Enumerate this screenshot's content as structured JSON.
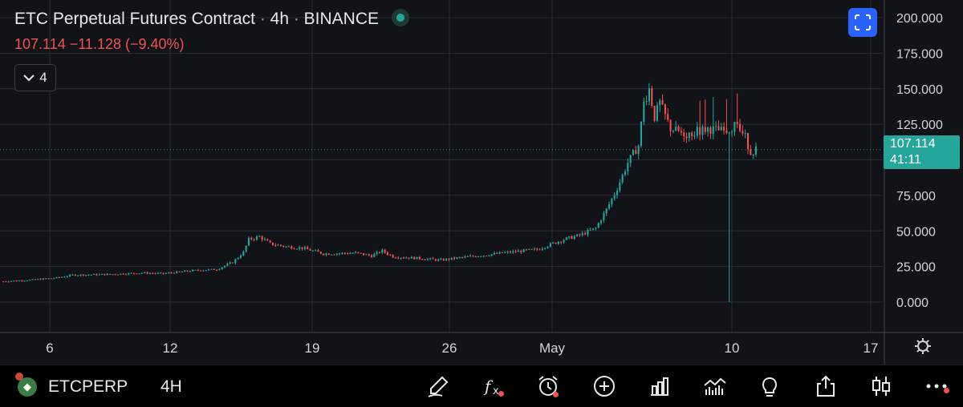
{
  "header": {
    "title": "ETC Perpetual Futures Contract",
    "interval": "4h",
    "exchange": "BINANCE",
    "last": "107.114",
    "change": "−11.128",
    "change_pct": "(−9.40%)",
    "indicator_count": "4"
  },
  "price_label": {
    "price": "107.114",
    "countdown": "41:11"
  },
  "bottom": {
    "symbol": "ETCPERP",
    "interval": "4H"
  },
  "colors": {
    "up": "#26a69a",
    "down": "#ef5350",
    "bg": "#121318",
    "accent": "#2962ff"
  },
  "icons": [
    "draw-icon",
    "fx-icon",
    "alarm-icon",
    "add-icon",
    "bar-chart-icon",
    "compare-icon",
    "idea-icon",
    "share-icon",
    "candles-icon",
    "more-icon"
  ],
  "chart_data": {
    "type": "candlestick",
    "symbol": "ETC Perpetual Futures Contract",
    "ylim": [
      0,
      200
    ],
    "y_ticks": [
      "200.000",
      "175.000",
      "150.000",
      "125.000",
      "100.000",
      "75.000",
      "50.000",
      "25.000",
      "0.000"
    ],
    "x_ticks": [
      "6",
      "12",
      "19",
      "26",
      "May",
      "10",
      "17"
    ],
    "current_price": 107.114,
    "price_path": [
      [
        0,
        14.5
      ],
      [
        5,
        15.5
      ],
      [
        10,
        17
      ],
      [
        13,
        19
      ],
      [
        20,
        19.5
      ],
      [
        26,
        20.5
      ],
      [
        30,
        20
      ],
      [
        35,
        22
      ],
      [
        40,
        23
      ],
      [
        43,
        28
      ],
      [
        45,
        35
      ],
      [
        46,
        44
      ],
      [
        48,
        46
      ],
      [
        50,
        41
      ],
      [
        53,
        39
      ],
      [
        56,
        38
      ],
      [
        60,
        34
      ],
      [
        66,
        34.5
      ],
      [
        69,
        32.5
      ],
      [
        71,
        36
      ],
      [
        73,
        32
      ],
      [
        77,
        31
      ],
      [
        82,
        29.5
      ],
      [
        85,
        31
      ],
      [
        90,
        33
      ],
      [
        96,
        35.5
      ],
      [
        100,
        37
      ],
      [
        105,
        44
      ],
      [
        108,
        47
      ],
      [
        111,
        52
      ],
      [
        113,
        65
      ],
      [
        115,
        80
      ],
      [
        117,
        98
      ],
      [
        119,
        110
      ],
      [
        120,
        140
      ],
      [
        121,
        150
      ],
      [
        122,
        130
      ],
      [
        123,
        140
      ],
      [
        125,
        122
      ],
      [
        128,
        118
      ],
      [
        132,
        122
      ],
      [
        135,
        120
      ],
      [
        137,
        124
      ],
      [
        139,
        116
      ],
      [
        140,
        105
      ],
      [
        141,
        108
      ]
    ],
    "sampling": 128,
    "anomaly": {
      "index": 136,
      "low": 0,
      "open": 120,
      "close": 118
    }
  }
}
